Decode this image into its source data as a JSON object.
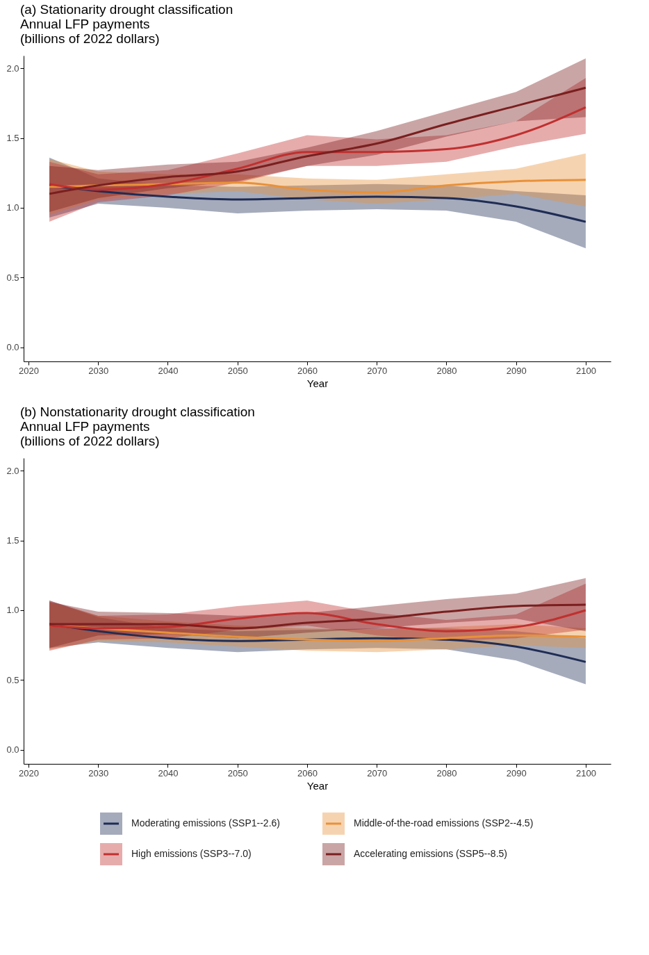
{
  "chart_data": [
    {
      "type": "line",
      "title": "(a) Stationarity drought classification",
      "ylabel": "Annual LFP payments\n(billions of 2022 dollars)",
      "xlabel": "Year",
      "x": [
        2023,
        2030,
        2040,
        2050,
        2060,
        2070,
        2080,
        2090,
        2100
      ],
      "xlim": [
        2019.3,
        2103.6
      ],
      "xticks": [
        2020,
        2030,
        2040,
        2050,
        2060,
        2070,
        2080,
        2090,
        2100
      ],
      "ylim": [
        -0.1,
        2.09
      ],
      "yticks": [
        {
          "value": 0,
          "label": "0.0"
        },
        {
          "value": 0.5,
          "label": "0.5"
        },
        {
          "value": 1,
          "label": "1.0"
        },
        {
          "value": 1.5,
          "label": "1.5"
        },
        {
          "value": 2,
          "label": "2.0"
        }
      ],
      "grid": false,
      "marker": "none",
      "line_style": "solid",
      "series": [
        {
          "color": "#1f2d55",
          "values": [
            1.16,
            1.12,
            1.08,
            1.06,
            1.07,
            1.08,
            1.07,
            1.01,
            0.9
          ],
          "lower": [
            0.93,
            1.03,
            1.0,
            0.96,
            0.98,
            0.99,
            0.98,
            0.9,
            0.71
          ],
          "upper": [
            1.36,
            1.21,
            1.16,
            1.15,
            1.16,
            1.17,
            1.16,
            1.12,
            1.09
          ]
        },
        {
          "color": "#e8913a",
          "values": [
            1.15,
            1.16,
            1.17,
            1.18,
            1.13,
            1.11,
            1.16,
            1.19,
            1.2
          ],
          "lower": [
            0.95,
            1.06,
            1.1,
            1.12,
            1.06,
            1.03,
            1.06,
            1.1,
            1.01
          ],
          "upper": [
            1.35,
            1.26,
            1.24,
            1.24,
            1.21,
            1.2,
            1.24,
            1.28,
            1.39
          ]
        },
        {
          "color": "#c0302f",
          "values": [
            1.17,
            1.13,
            1.17,
            1.28,
            1.4,
            1.4,
            1.42,
            1.52,
            1.72
          ],
          "lower": [
            0.9,
            1.04,
            1.09,
            1.18,
            1.3,
            1.3,
            1.33,
            1.44,
            1.53
          ],
          "upper": [
            1.33,
            1.24,
            1.27,
            1.39,
            1.52,
            1.49,
            1.52,
            1.62,
            1.93
          ]
        },
        {
          "color": "#7a1f1f",
          "values": [
            1.1,
            1.16,
            1.22,
            1.26,
            1.37,
            1.46,
            1.6,
            1.73,
            1.86
          ],
          "lower": [
            0.97,
            1.07,
            1.14,
            1.19,
            1.3,
            1.38,
            1.51,
            1.62,
            1.65
          ],
          "upper": [
            1.3,
            1.27,
            1.31,
            1.33,
            1.43,
            1.55,
            1.69,
            1.83,
            2.07
          ]
        }
      ]
    },
    {
      "type": "line",
      "title": "(b) Nonstationarity drought classification",
      "ylabel": "Annual LFP payments\n(billions of 2022 dollars)",
      "xlabel": "Year",
      "x": [
        2023,
        2030,
        2040,
        2050,
        2060,
        2070,
        2080,
        2090,
        2100
      ],
      "xlim": [
        2019.3,
        2103.6
      ],
      "xticks": [
        2020,
        2030,
        2040,
        2050,
        2060,
        2070,
        2080,
        2090,
        2100
      ],
      "ylim": [
        -0.1,
        2.09
      ],
      "yticks": [
        {
          "value": 0,
          "label": "0.0"
        },
        {
          "value": 0.5,
          "label": "0.5"
        },
        {
          "value": 1,
          "label": "1.0"
        },
        {
          "value": 1.5,
          "label": "1.5"
        },
        {
          "value": 2,
          "label": "2.0"
        }
      ],
      "grid": false,
      "marker": "none",
      "line_style": "solid",
      "legend": "bottom",
      "series": [
        {
          "name": "Moderating emissions (SSP1--2.6)",
          "color": "#1f2d55",
          "values": [
            0.9,
            0.85,
            0.8,
            0.78,
            0.79,
            0.8,
            0.79,
            0.74,
            0.63
          ],
          "lower": [
            0.73,
            0.77,
            0.73,
            0.7,
            0.72,
            0.73,
            0.72,
            0.64,
            0.47
          ],
          "upper": [
            1.07,
            0.95,
            0.87,
            0.85,
            0.86,
            0.87,
            0.87,
            0.85,
            0.8
          ]
        },
        {
          "name": "Middle-of-the-road emissions (SSP2--4.5)",
          "color": "#e8913a",
          "values": [
            0.89,
            0.87,
            0.84,
            0.81,
            0.79,
            0.78,
            0.8,
            0.82,
            0.81
          ],
          "lower": [
            0.72,
            0.78,
            0.77,
            0.74,
            0.71,
            0.7,
            0.72,
            0.75,
            0.73
          ],
          "upper": [
            1.06,
            0.96,
            0.92,
            0.89,
            0.87,
            0.86,
            0.88,
            0.9,
            0.87
          ]
        },
        {
          "name": "High emissions (SSP3--7.0)",
          "color": "#c0302f",
          "values": [
            0.89,
            0.87,
            0.88,
            0.94,
            0.98,
            0.9,
            0.85,
            0.88,
            1.0
          ],
          "lower": [
            0.71,
            0.79,
            0.8,
            0.86,
            0.89,
            0.82,
            0.78,
            0.8,
            0.86
          ],
          "upper": [
            1.07,
            0.96,
            0.97,
            1.03,
            1.07,
            0.98,
            0.93,
            0.97,
            1.19
          ]
        },
        {
          "name": "Accelerating emissions (SSP5--8.5)",
          "color": "#7a1f1f",
          "values": [
            0.9,
            0.9,
            0.9,
            0.87,
            0.91,
            0.94,
            0.99,
            1.03,
            1.04
          ],
          "lower": [
            0.73,
            0.82,
            0.83,
            0.8,
            0.84,
            0.87,
            0.91,
            0.94,
            0.85
          ],
          "upper": [
            1.06,
            0.99,
            0.98,
            0.96,
            0.98,
            1.03,
            1.08,
            1.12,
            1.23
          ]
        }
      ]
    }
  ]
}
